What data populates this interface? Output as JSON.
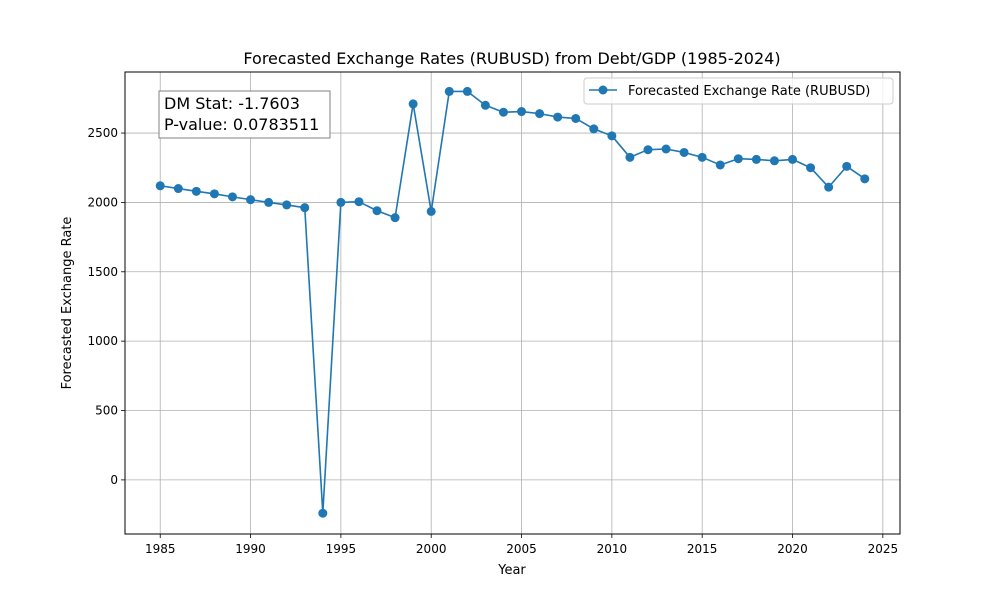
{
  "chart_data": {
    "type": "line",
    "title": "Forecasted Exchange Rates (RUBUSD) from Debt/GDP (1985-2024)",
    "xlabel": "Year",
    "ylabel": "Forecasted Exchange Rate",
    "xlim": [
      1983.05,
      2025.95
    ],
    "ylim": [
      -390,
      2940
    ],
    "xticks": [
      1985,
      1990,
      1995,
      2000,
      2005,
      2010,
      2015,
      2020,
      2025
    ],
    "yticks": [
      0,
      500,
      1000,
      1500,
      2000,
      2500
    ],
    "grid": true,
    "legend_position": "top-right",
    "series": [
      {
        "name": "Forecasted Exchange Rate (RUBUSD)",
        "color": "#1f77b4",
        "marker": "circle",
        "x": [
          1985,
          1986,
          1987,
          1988,
          1989,
          1990,
          1991,
          1992,
          1993,
          1994,
          1995,
          1996,
          1997,
          1998,
          1999,
          2000,
          2001,
          2002,
          2003,
          2004,
          2005,
          2006,
          2007,
          2008,
          2009,
          2010,
          2011,
          2012,
          2013,
          2014,
          2015,
          2016,
          2017,
          2018,
          2019,
          2020,
          2021,
          2022,
          2023,
          2024
        ],
        "y": [
          2120,
          2100,
          2080,
          2062,
          2040,
          2020,
          2000,
          1982,
          1962,
          -240,
          2000,
          2005,
          1940,
          1890,
          2710,
          1935,
          2800,
          2800,
          2700,
          2650,
          2655,
          2640,
          2615,
          2605,
          2530,
          2480,
          2325,
          2380,
          2385,
          2360,
          2325,
          2270,
          2315,
          2310,
          2300,
          2310,
          2250,
          2110,
          2260,
          2170
        ]
      }
    ],
    "annotation": {
      "line1": "DM Stat: -1.7603",
      "line2": "P-value: 0.0783511"
    }
  }
}
